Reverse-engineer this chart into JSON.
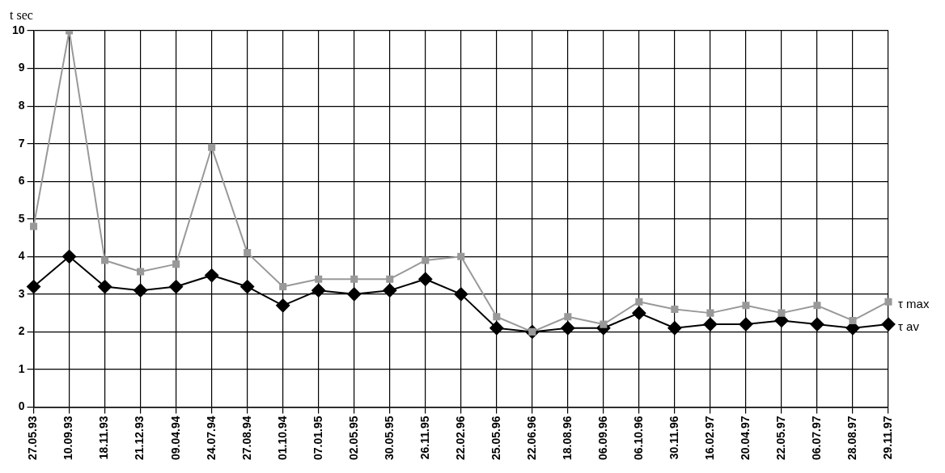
{
  "chart_data": {
    "type": "line",
    "ylabel": "t sec",
    "categories": [
      "27.05.93",
      "10.09.93",
      "18.11.93",
      "21.12.93",
      "09.04.94",
      "24.07.94",
      "27.08.94",
      "01.10.94",
      "07.01.95",
      "02.05.95",
      "30.05.95",
      "26.11.95",
      "22.02.96",
      "25.05.96",
      "22.06.96",
      "18.08.96",
      "06.09.96",
      "06.10.96",
      "30.11.96",
      "16.02.97",
      "20.04.97",
      "22.05.97",
      "06.07.97",
      "28.08.97",
      "29.11.97"
    ],
    "series": [
      {
        "name": "τ max",
        "color": "#999999",
        "marker": "square",
        "values": [
          4.8,
          10,
          3.9,
          3.6,
          3.8,
          6.9,
          4.1,
          3.2,
          3.4,
          3.4,
          3.4,
          3.9,
          4.0,
          2.4,
          2.0,
          2.4,
          2.2,
          2.8,
          2.6,
          2.5,
          2.7,
          2.5,
          2.7,
          2.3,
          2.8
        ]
      },
      {
        "name": "τ av",
        "color": "#000000",
        "marker": "diamond",
        "values": [
          3.2,
          4.0,
          3.2,
          3.1,
          3.2,
          3.5,
          3.2,
          2.7,
          3.1,
          3.0,
          3.1,
          3.4,
          3.0,
          2.1,
          2.0,
          2.1,
          2.1,
          2.5,
          2.1,
          2.2,
          2.2,
          2.3,
          2.2,
          2.1,
          2.2
        ]
      }
    ],
    "ylim": [
      0,
      10
    ],
    "yticks": [
      0,
      1,
      2,
      3,
      4,
      5,
      6,
      7,
      8,
      9,
      10
    ],
    "grid": true,
    "legend": false,
    "line_style": "solid"
  }
}
